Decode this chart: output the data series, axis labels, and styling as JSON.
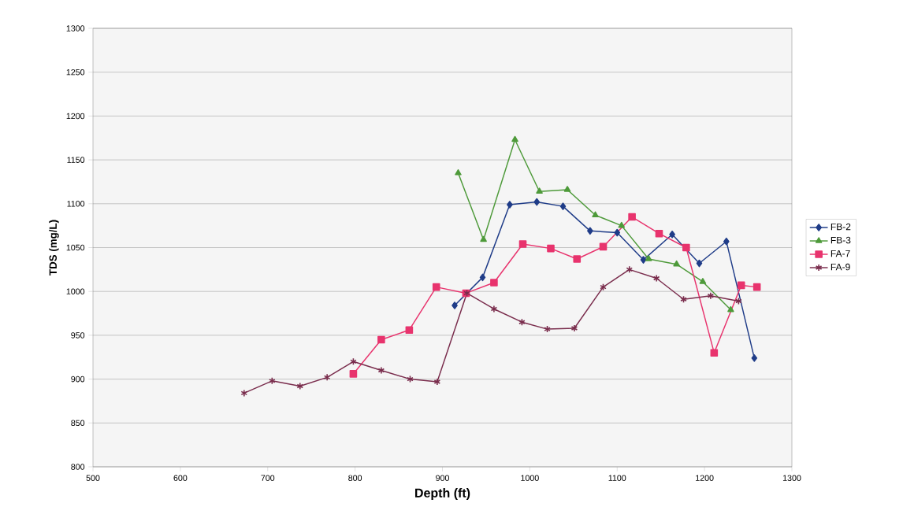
{
  "chart_data": {
    "type": "line",
    "xlabel": "Depth (ft)",
    "ylabel": "TDS (mg/L)",
    "xlim": [
      500,
      1300
    ],
    "xticks": [
      500,
      600,
      700,
      800,
      900,
      1000,
      1100,
      1200,
      1300
    ],
    "ylim": [
      800,
      1300
    ],
    "yticks": [
      800,
      850,
      900,
      950,
      1000,
      1050,
      1100,
      1150,
      1200,
      1250,
      1300
    ],
    "grid": "y",
    "legend": "right",
    "line_style": "solid",
    "series": [
      {
        "name": "FB-2",
        "color": "#1f3c88",
        "marker": "diamond",
        "x": [
          914,
          946,
          977,
          1008,
          1038,
          1069,
          1100,
          1130,
          1163,
          1194,
          1225,
          1257
        ],
        "values": [
          984,
          1016,
          1099,
          1102,
          1097,
          1069,
          1067,
          1036,
          1065,
          1032,
          1057,
          924
        ]
      },
      {
        "name": "FB-3",
        "color": "#4e9a3a",
        "marker": "triangle",
        "x": [
          918,
          947,
          983,
          1011,
          1043,
          1075,
          1105,
          1136,
          1168,
          1198,
          1230
        ],
        "values": [
          1135,
          1059,
          1173,
          1114,
          1116,
          1087,
          1075,
          1037,
          1031,
          1011,
          979
        ]
      },
      {
        "name": "FA-7",
        "color": "#e8336d",
        "marker": "square",
        "x": [
          798,
          830,
          862,
          893,
          927,
          959,
          992,
          1024,
          1054,
          1084,
          1117,
          1148,
          1179,
          1211,
          1242,
          1260
        ],
        "values": [
          906,
          945,
          956,
          1005,
          998,
          1010,
          1054,
          1049,
          1037,
          1051,
          1085,
          1066,
          1050,
          930,
          1007,
          1005
        ]
      },
      {
        "name": "FA-9",
        "color": "#7a2d4d",
        "marker": "cross",
        "x": [
          673,
          705,
          737,
          768,
          798,
          830,
          863,
          894,
          928,
          959,
          991,
          1020,
          1051,
          1084,
          1114,
          1145,
          1176,
          1207,
          1239
        ],
        "values": [
          884,
          898,
          892,
          902,
          920,
          910,
          900,
          897,
          998,
          980,
          965,
          957,
          958,
          1005,
          1025,
          1015,
          991,
          995,
          989
        ]
      }
    ]
  }
}
